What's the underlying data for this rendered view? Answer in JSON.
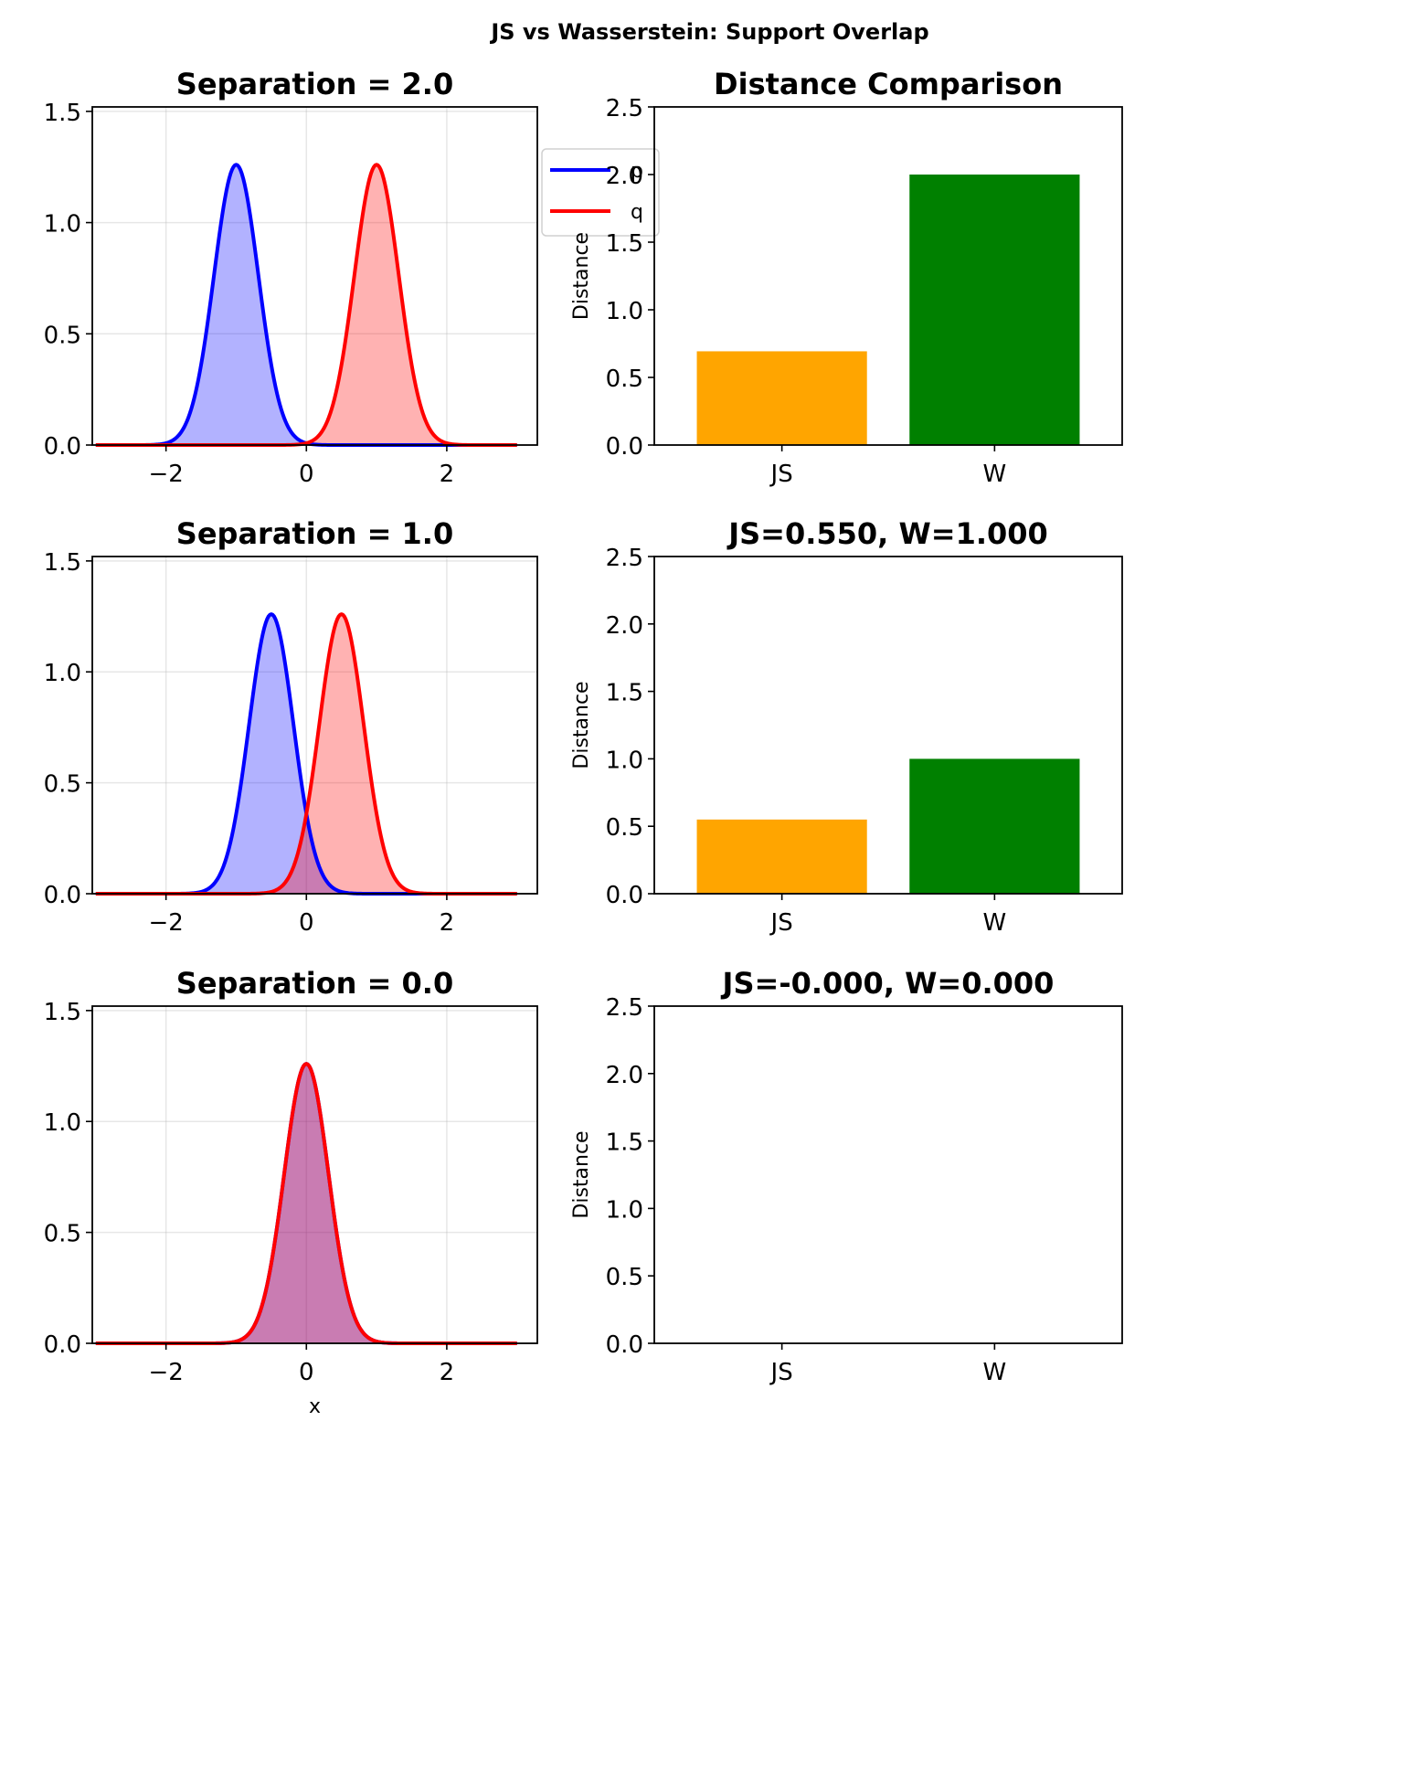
{
  "figure": {
    "suptitle": "JS vs Wasserstein: Support Overlap"
  },
  "chart_data": [
    {
      "type": "area",
      "panel": "row1-left",
      "title": "Separation = 2.0",
      "xlabel": "",
      "ylabel": "",
      "xlim": [
        -3.3,
        3.3
      ],
      "ylim": [
        0,
        1.52
      ],
      "xticks": [
        -2,
        0,
        2
      ],
      "xtick_labels": [
        "−2",
        "0",
        "2"
      ],
      "yticks": [
        0.0,
        0.5,
        1.0,
        1.5
      ],
      "ytick_labels": [
        "0.0",
        "0.5",
        "1.0",
        "1.5"
      ],
      "grid": true,
      "legend": {
        "placement": "top-right",
        "entries": [
          {
            "label": "p",
            "color": "#0000ff"
          },
          {
            "label": "q",
            "color": "#ff0000"
          }
        ]
      },
      "x_domain": [
        -3,
        3
      ],
      "series": [
        {
          "name": "p",
          "distribution": "gaussian",
          "mean": -1.0,
          "std": 0.316,
          "peak": 1.26,
          "color": "#0000ff"
        },
        {
          "name": "q",
          "distribution": "gaussian",
          "mean": 1.0,
          "std": 0.316,
          "peak": 1.26,
          "color": "#ff0000"
        }
      ]
    },
    {
      "type": "bar",
      "panel": "row1-right",
      "title": "Distance Comparison",
      "xlabel": "",
      "ylabel": "Distance",
      "ylim": [
        0,
        2.5
      ],
      "yticks": [
        0.0,
        0.5,
        1.0,
        1.5,
        2.0,
        2.5
      ],
      "ytick_labels": [
        "0.0",
        "0.5",
        "1.0",
        "1.5",
        "2.0",
        "2.5"
      ],
      "categories": [
        "JS",
        "W"
      ],
      "values": [
        0.693,
        2.0
      ],
      "colors": [
        "#ffa500",
        "#008000"
      ],
      "grid": false
    },
    {
      "type": "area",
      "panel": "row2-left",
      "title": "Separation = 1.0",
      "xlabel": "",
      "ylabel": "",
      "xlim": [
        -3.3,
        3.3
      ],
      "ylim": [
        0,
        1.52
      ],
      "xticks": [
        -2,
        0,
        2
      ],
      "xtick_labels": [
        "−2",
        "0",
        "2"
      ],
      "yticks": [
        0.0,
        0.5,
        1.0,
        1.5
      ],
      "ytick_labels": [
        "0.0",
        "0.5",
        "1.0",
        "1.5"
      ],
      "grid": true,
      "x_domain": [
        -3,
        3
      ],
      "series": [
        {
          "name": "p",
          "distribution": "gaussian",
          "mean": -0.5,
          "std": 0.316,
          "peak": 1.26,
          "color": "#0000ff"
        },
        {
          "name": "q",
          "distribution": "gaussian",
          "mean": 0.5,
          "std": 0.316,
          "peak": 1.26,
          "color": "#ff0000"
        }
      ]
    },
    {
      "type": "bar",
      "panel": "row2-right",
      "title": "JS=0.550, W=1.000",
      "xlabel": "",
      "ylabel": "Distance",
      "ylim": [
        0,
        2.5
      ],
      "yticks": [
        0.0,
        0.5,
        1.0,
        1.5,
        2.0,
        2.5
      ],
      "ytick_labels": [
        "0.0",
        "0.5",
        "1.0",
        "1.5",
        "2.0",
        "2.5"
      ],
      "categories": [
        "JS",
        "W"
      ],
      "values": [
        0.55,
        1.0
      ],
      "colors": [
        "#ffa500",
        "#008000"
      ],
      "grid": false
    },
    {
      "type": "area",
      "panel": "row3-left",
      "title": "Separation = 0.0",
      "xlabel": "x",
      "ylabel": "",
      "xlim": [
        -3.3,
        3.3
      ],
      "ylim": [
        0,
        1.52
      ],
      "xticks": [
        -2,
        0,
        2
      ],
      "xtick_labels": [
        "−2",
        "0",
        "2"
      ],
      "yticks": [
        0.0,
        0.5,
        1.0,
        1.5
      ],
      "ytick_labels": [
        "0.0",
        "0.5",
        "1.0",
        "1.5"
      ],
      "grid": true,
      "x_domain": [
        -3,
        3
      ],
      "series": [
        {
          "name": "p",
          "distribution": "gaussian",
          "mean": 0.0,
          "std": 0.316,
          "peak": 1.26,
          "color": "#0000ff"
        },
        {
          "name": "q",
          "distribution": "gaussian",
          "mean": 0.0,
          "std": 0.316,
          "peak": 1.26,
          "color": "#ff0000"
        }
      ]
    },
    {
      "type": "bar",
      "panel": "row3-right",
      "title": "JS=-0.000, W=0.000",
      "xlabel": "",
      "ylabel": "Distance",
      "ylim": [
        0,
        2.5
      ],
      "yticks": [
        0.0,
        0.5,
        1.0,
        1.5,
        2.0,
        2.5
      ],
      "ytick_labels": [
        "0.0",
        "0.5",
        "1.0",
        "1.5",
        "2.0",
        "2.5"
      ],
      "categories": [
        "JS",
        "W"
      ],
      "values": [
        0.0,
        0.0
      ],
      "colors": [
        "#ffa500",
        "#008000"
      ],
      "grid": false
    }
  ]
}
